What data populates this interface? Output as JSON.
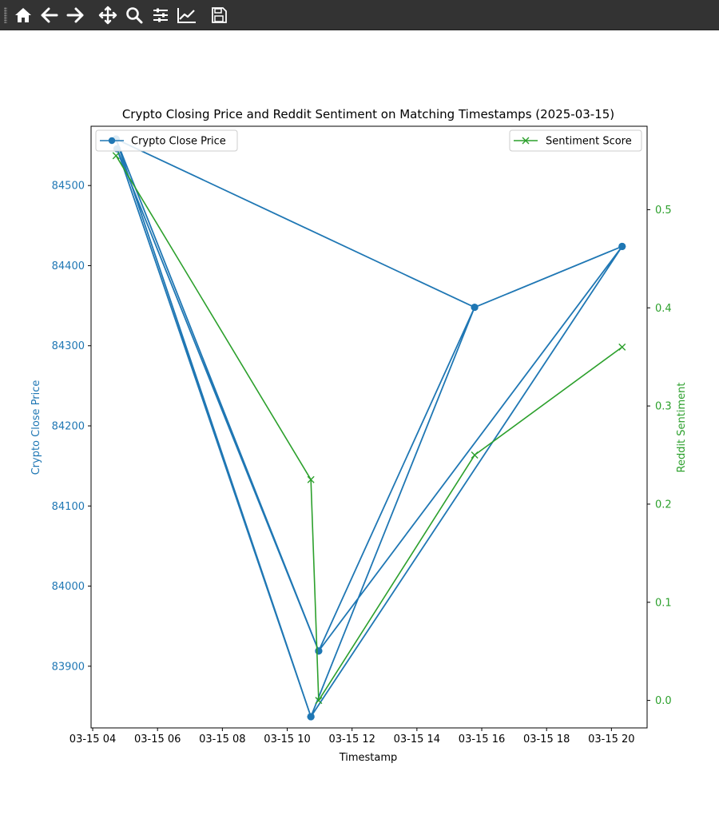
{
  "toolbar": {
    "icons": [
      "home-icon",
      "back-arrow-icon",
      "forward-arrow-icon",
      "pan-icon",
      "zoom-icon",
      "configure-subplots-icon",
      "edit-axis-icon",
      "save-icon"
    ]
  },
  "colors": {
    "toolbar_bg": "#333333",
    "price": "#1f77b4",
    "sentiment": "#2ca02c",
    "text": "#000000"
  },
  "chart_data": {
    "type": "line",
    "title": "Crypto Closing Price and Reddit Sentiment on Matching Timestamps (2025-03-15)",
    "xlabel": "Timestamp",
    "ylabel_left": "Crypto Close Price",
    "ylabel_right": "Reddit Sentiment",
    "x_ticks": [
      "03-15 04",
      "03-15 06",
      "03-15 08",
      "03-15 10",
      "03-15 12",
      "03-15 14",
      "03-15 16",
      "03-15 18",
      "03-15 20"
    ],
    "y_left_ticks": [
      "83900",
      "84000",
      "84100",
      "84200",
      "84300",
      "84400",
      "84500"
    ],
    "y_right_ticks": [
      "0.0",
      "0.1",
      "0.2",
      "0.3",
      "0.4",
      "0.5"
    ],
    "xlim_hours": [
      3.95,
      21.1
    ],
    "ylim_left": [
      83823,
      84574
    ],
    "ylim_right": [
      -0.028,
      0.585
    ],
    "legend_left": {
      "label": "Crypto Close Price",
      "placement": "upper-left"
    },
    "legend_right": {
      "label": "Sentiment Score",
      "placement": "upper-right"
    },
    "price_series": {
      "name": "Crypto Close Price",
      "x_hours": [
        4.72,
        10.73,
        4.72,
        10.97,
        4.75,
        10.73,
        4.72,
        10.97,
        20.33,
        15.78,
        4.72,
        10.73,
        15.78,
        10.73,
        20.33,
        10.97,
        15.78,
        10.73,
        20.33
      ],
      "values": [
        84558,
        83837,
        84558,
        83919,
        84546,
        83837,
        84558,
        83919,
        84424,
        84348,
        84558,
        83837,
        84348,
        83837,
        84424,
        83919,
        84348,
        83837,
        84424
      ]
    },
    "sentiment_series": {
      "name": "Sentiment Score",
      "x_hours": [
        4.72,
        10.73,
        10.97,
        15.78,
        20.33
      ],
      "values": [
        0.555,
        0.225,
        0.0,
        0.25,
        0.36
      ]
    }
  }
}
